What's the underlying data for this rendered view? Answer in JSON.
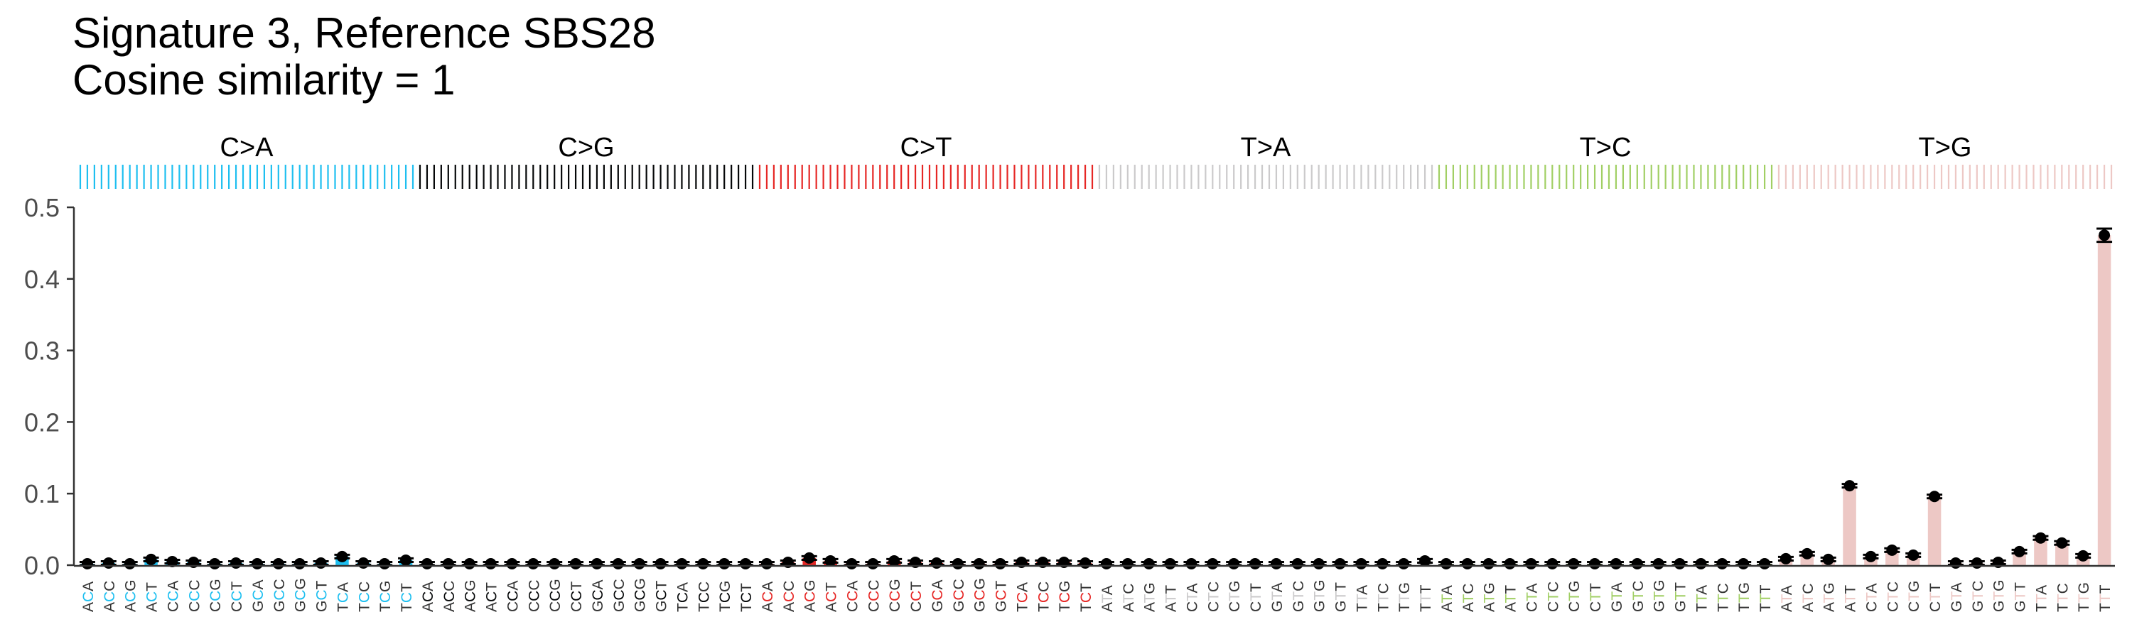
{
  "title": {
    "line1": "Signature 3, Reference SBS28",
    "line2": "Cosine similarity = 1"
  },
  "colors": {
    "C>A": "#1ebff0",
    "C>G": "#050708",
    "C>T": "#e62725",
    "T>A": "#cbcacb",
    "T>C": "#a1cf64",
    "T>G": "#edc8c5"
  },
  "chart_data": {
    "type": "bar",
    "ylim": [
      0,
      0.5
    ],
    "yticks": [
      "0.0",
      "0.1",
      "0.2",
      "0.3",
      "0.4",
      "0.5"
    ],
    "xlabel": "",
    "ylabel": "",
    "grid": false,
    "mutation_classes": [
      "C>A",
      "C>G",
      "C>T",
      "T>A",
      "T>C",
      "T>G"
    ],
    "contexts": [
      [
        "ACA",
        "ACC",
        "ACG",
        "ACT",
        "CCA",
        "CCC",
        "CCG",
        "CCT",
        "GCA",
        "GCC",
        "GCG",
        "GCT",
        "TCA",
        "TCC",
        "TCG",
        "TCT"
      ],
      [
        "ACA",
        "ACC",
        "ACG",
        "ACT",
        "CCA",
        "CCC",
        "CCG",
        "CCT",
        "GCA",
        "GCC",
        "GCG",
        "GCT",
        "TCA",
        "TCC",
        "TCG",
        "TCT"
      ],
      [
        "ACA",
        "ACC",
        "ACG",
        "ACT",
        "CCA",
        "CCC",
        "CCG",
        "CCT",
        "GCA",
        "GCC",
        "GCG",
        "GCT",
        "TCA",
        "TCC",
        "TCG",
        "TCT"
      ],
      [
        "ATA",
        "ATC",
        "ATG",
        "ATT",
        "CTA",
        "CTC",
        "CTG",
        "CTT",
        "GTA",
        "GTC",
        "GTG",
        "GTT",
        "TTA",
        "TTC",
        "TTG",
        "TTT"
      ],
      [
        "ATA",
        "ATC",
        "ATG",
        "ATT",
        "CTA",
        "CTC",
        "CTG",
        "CTT",
        "GTA",
        "GTC",
        "GTG",
        "GTT",
        "TTA",
        "TTC",
        "TTG",
        "TTT"
      ],
      [
        "ATA",
        "ATC",
        "ATG",
        "ATT",
        "CTA",
        "CTC",
        "CTG",
        "CTT",
        "GTA",
        "GTC",
        "GTG",
        "GTT",
        "TTA",
        "TTC",
        "TTG",
        "TTT"
      ]
    ],
    "values": [
      [
        0.002,
        0.003,
        0.002,
        0.008,
        0.005,
        0.004,
        0.002,
        0.003,
        0.002,
        0.002,
        0.002,
        0.003,
        0.012,
        0.003,
        0.002,
        0.007
      ],
      [
        0.002,
        0.002,
        0.002,
        0.002,
        0.002,
        0.002,
        0.002,
        0.002,
        0.002,
        0.002,
        0.002,
        0.002,
        0.002,
        0.002,
        0.002,
        0.002
      ],
      [
        0.002,
        0.004,
        0.01,
        0.006,
        0.002,
        0.002,
        0.006,
        0.004,
        0.003,
        0.002,
        0.002,
        0.002,
        0.004,
        0.004,
        0.004,
        0.003
      ],
      [
        0.002,
        0.002,
        0.002,
        0.002,
        0.002,
        0.002,
        0.002,
        0.002,
        0.002,
        0.002,
        0.002,
        0.002,
        0.002,
        0.002,
        0.002,
        0.006
      ],
      [
        0.002,
        0.002,
        0.002,
        0.002,
        0.002,
        0.002,
        0.002,
        0.002,
        0.002,
        0.002,
        0.002,
        0.002,
        0.002,
        0.002,
        0.002,
        0.002
      ],
      [
        0.009,
        0.016,
        0.008,
        0.111,
        0.012,
        0.021,
        0.014,
        0.096,
        0.003,
        0.003,
        0.004,
        0.019,
        0.038,
        0.031,
        0.013,
        0.461
      ]
    ]
  }
}
